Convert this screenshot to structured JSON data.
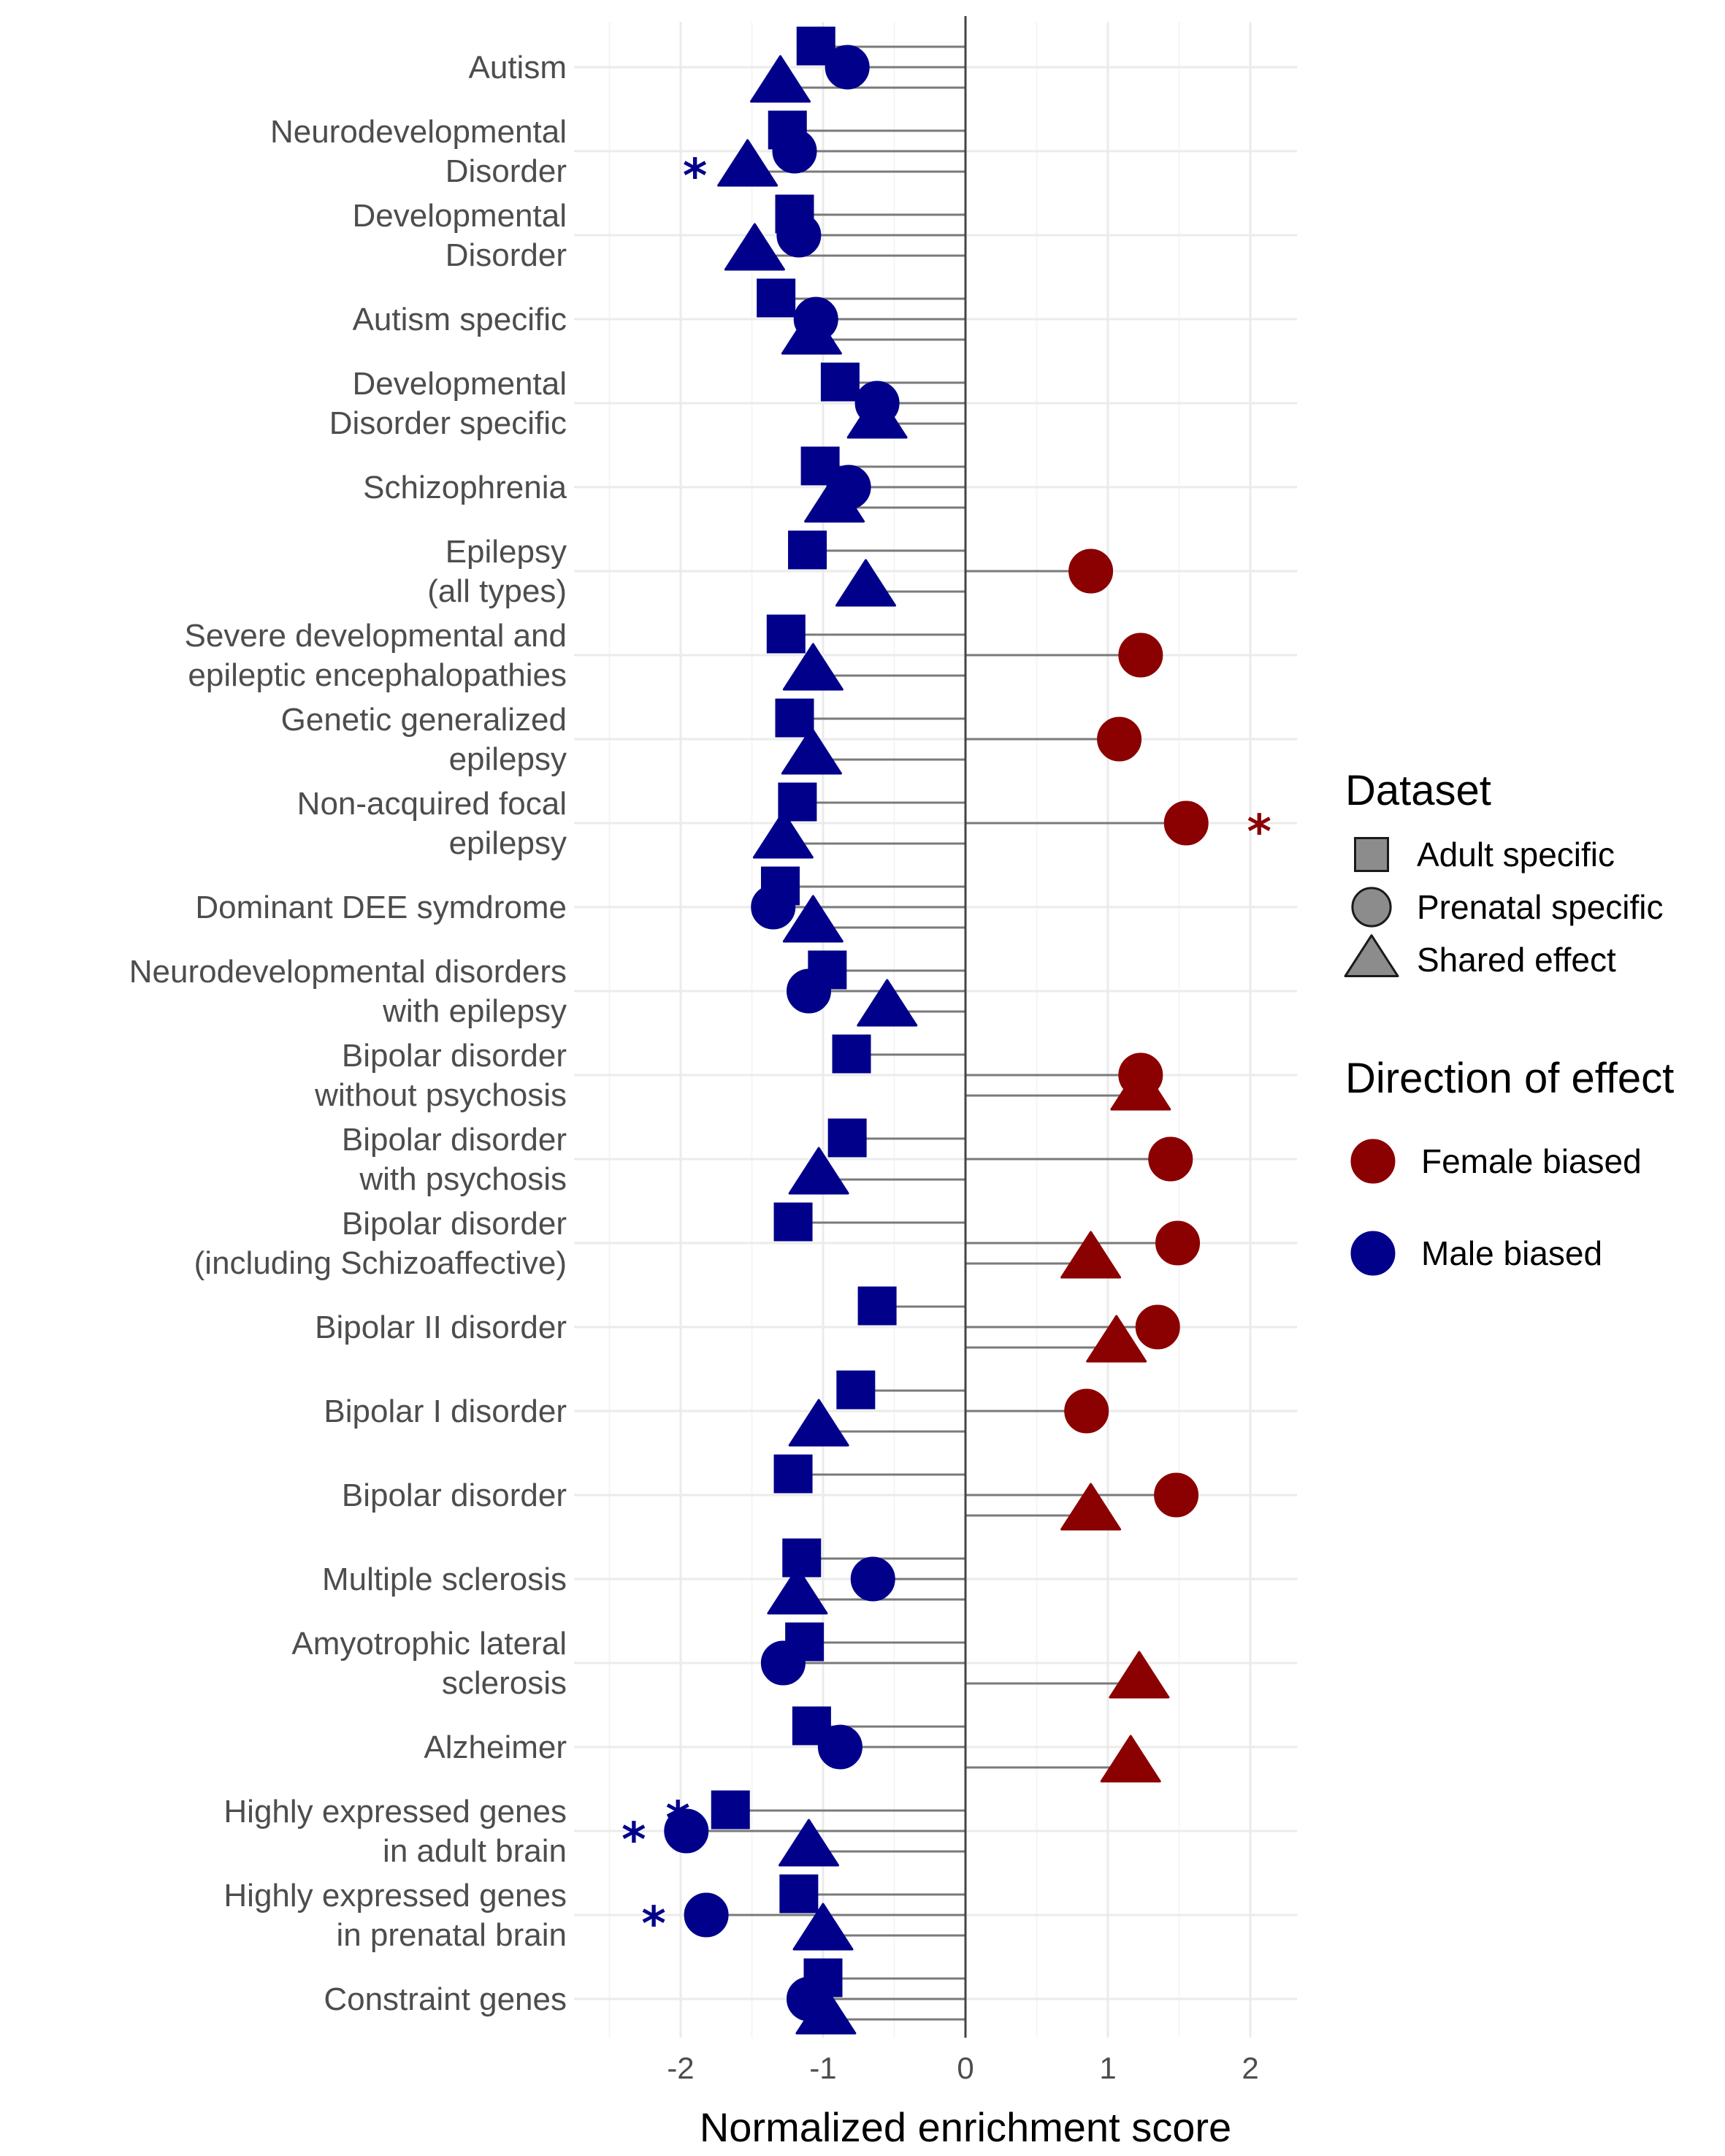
{
  "chart_data": {
    "type": "scatter",
    "xlabel": "Normalized enrichment score",
    "xlim": [
      -2.55,
      2.3
    ],
    "x_ticks": [
      -2,
      -1,
      0,
      1,
      2
    ],
    "x_tick_labels": [
      "-2",
      "-1",
      "0",
      "1",
      "2"
    ],
    "grid": true,
    "legend_position": "right",
    "colors": {
      "Female biased": "#8b0000",
      "Male biased": "#00008b"
    },
    "legend": {
      "dataset_title": "Dataset",
      "dataset_items": [
        {
          "label": "Adult specific",
          "shape": "square"
        },
        {
          "label": "Prenatal specific",
          "shape": "circle"
        },
        {
          "label": "Shared effect",
          "shape": "triangle"
        }
      ],
      "direction_title": "Direction of effect",
      "direction_items": [
        {
          "label": "Female biased",
          "color": "#8b0000"
        },
        {
          "label": "Male biased",
          "color": "#00008b"
        }
      ]
    },
    "categories": [
      {
        "label": [
          "Autism"
        ],
        "points": [
          {
            "dataset": "Adult specific",
            "value": -1.05,
            "direction": "Male biased",
            "sig": false
          },
          {
            "dataset": "Prenatal specific",
            "value": -0.83,
            "direction": "Male biased",
            "sig": false
          },
          {
            "dataset": "Shared effect",
            "value": -1.3,
            "direction": "Male biased",
            "sig": false
          }
        ]
      },
      {
        "label": [
          "Neurodevelopmental",
          "Disorder"
        ],
        "points": [
          {
            "dataset": "Adult specific",
            "value": -1.25,
            "direction": "Male biased",
            "sig": false
          },
          {
            "dataset": "Prenatal specific",
            "value": -1.2,
            "direction": "Male biased",
            "sig": false
          },
          {
            "dataset": "Shared effect",
            "value": -1.53,
            "direction": "Male biased",
            "sig": true
          }
        ]
      },
      {
        "label": [
          "Developmental",
          "Disorder"
        ],
        "points": [
          {
            "dataset": "Adult specific",
            "value": -1.2,
            "direction": "Male biased",
            "sig": false
          },
          {
            "dataset": "Prenatal specific",
            "value": -1.17,
            "direction": "Male biased",
            "sig": false
          },
          {
            "dataset": "Shared effect",
            "value": -1.48,
            "direction": "Male biased",
            "sig": false
          }
        ]
      },
      {
        "label": [
          "Autism specific"
        ],
        "points": [
          {
            "dataset": "Adult specific",
            "value": -1.33,
            "direction": "Male biased",
            "sig": false
          },
          {
            "dataset": "Prenatal specific",
            "value": -1.05,
            "direction": "Male biased",
            "sig": false
          },
          {
            "dataset": "Shared effect",
            "value": -1.08,
            "direction": "Male biased",
            "sig": false
          }
        ]
      },
      {
        "label": [
          "Developmental",
          "Disorder specific"
        ],
        "points": [
          {
            "dataset": "Adult specific",
            "value": -0.88,
            "direction": "Male biased",
            "sig": false
          },
          {
            "dataset": "Prenatal specific",
            "value": -0.62,
            "direction": "Male biased",
            "sig": false
          },
          {
            "dataset": "Shared effect",
            "value": -0.62,
            "direction": "Male biased",
            "sig": false
          }
        ]
      },
      {
        "label": [
          "Schizophrenia"
        ],
        "points": [
          {
            "dataset": "Adult specific",
            "value": -1.02,
            "direction": "Male biased",
            "sig": false
          },
          {
            "dataset": "Prenatal specific",
            "value": -0.82,
            "direction": "Male biased",
            "sig": false
          },
          {
            "dataset": "Shared effect",
            "value": -0.92,
            "direction": "Male biased",
            "sig": false
          }
        ]
      },
      {
        "label": [
          "Epilepsy",
          "(all types)"
        ],
        "points": [
          {
            "dataset": "Adult specific",
            "value": -1.11,
            "direction": "Male biased",
            "sig": false
          },
          {
            "dataset": "Prenatal specific",
            "value": 0.88,
            "direction": "Female biased",
            "sig": false
          },
          {
            "dataset": "Shared effect",
            "value": -0.7,
            "direction": "Male biased",
            "sig": false
          }
        ]
      },
      {
        "label": [
          "Severe developmental and",
          "epileptic encephalopathies"
        ],
        "points": [
          {
            "dataset": "Adult specific",
            "value": -1.26,
            "direction": "Male biased",
            "sig": false
          },
          {
            "dataset": "Prenatal specific",
            "value": 1.23,
            "direction": "Female biased",
            "sig": false
          },
          {
            "dataset": "Shared effect",
            "value": -1.07,
            "direction": "Male biased",
            "sig": false
          }
        ]
      },
      {
        "label": [
          "Genetic generalized",
          "epilepsy"
        ],
        "points": [
          {
            "dataset": "Adult specific",
            "value": -1.2,
            "direction": "Male biased",
            "sig": false
          },
          {
            "dataset": "Prenatal specific",
            "value": 1.08,
            "direction": "Female biased",
            "sig": false
          },
          {
            "dataset": "Shared effect",
            "value": -1.08,
            "direction": "Male biased",
            "sig": false
          }
        ]
      },
      {
        "label": [
          "Non-acquired focal",
          "epilepsy"
        ],
        "points": [
          {
            "dataset": "Adult specific",
            "value": -1.18,
            "direction": "Male biased",
            "sig": false
          },
          {
            "dataset": "Prenatal specific",
            "value": 1.55,
            "direction": "Female biased",
            "sig": true
          },
          {
            "dataset": "Shared effect",
            "value": -1.28,
            "direction": "Male biased",
            "sig": false
          }
        ]
      },
      {
        "label": [
          "Dominant DEE symdrome"
        ],
        "points": [
          {
            "dataset": "Adult specific",
            "value": -1.3,
            "direction": "Male biased",
            "sig": false
          },
          {
            "dataset": "Prenatal specific",
            "value": -1.35,
            "direction": "Male biased",
            "sig": false
          },
          {
            "dataset": "Shared effect",
            "value": -1.07,
            "direction": "Male biased",
            "sig": false
          }
        ]
      },
      {
        "label": [
          "Neurodevelopmental disorders",
          "with epilepsy"
        ],
        "points": [
          {
            "dataset": "Adult specific",
            "value": -0.97,
            "direction": "Male biased",
            "sig": false
          },
          {
            "dataset": "Prenatal specific",
            "value": -1.1,
            "direction": "Male biased",
            "sig": false
          },
          {
            "dataset": "Shared effect",
            "value": -0.55,
            "direction": "Male biased",
            "sig": false
          }
        ]
      },
      {
        "label": [
          "Bipolar disorder",
          "without psychosis"
        ],
        "points": [
          {
            "dataset": "Adult specific",
            "value": -0.8,
            "direction": "Male biased",
            "sig": false
          },
          {
            "dataset": "Prenatal specific",
            "value": 1.23,
            "direction": "Female biased",
            "sig": false
          },
          {
            "dataset": "Shared effect",
            "value": 1.23,
            "direction": "Female biased",
            "sig": false
          }
        ]
      },
      {
        "label": [
          "Bipolar disorder",
          "with psychosis"
        ],
        "points": [
          {
            "dataset": "Adult specific",
            "value": -0.83,
            "direction": "Male biased",
            "sig": false
          },
          {
            "dataset": "Prenatal specific",
            "value": 1.44,
            "direction": "Female biased",
            "sig": false
          },
          {
            "dataset": "Shared effect",
            "value": -1.03,
            "direction": "Male biased",
            "sig": false
          }
        ]
      },
      {
        "label": [
          "Bipolar disorder",
          "(including Schizoaffective)"
        ],
        "points": [
          {
            "dataset": "Adult specific",
            "value": -1.21,
            "direction": "Male biased",
            "sig": false
          },
          {
            "dataset": "Prenatal specific",
            "value": 1.49,
            "direction": "Female biased",
            "sig": false
          },
          {
            "dataset": "Shared effect",
            "value": 0.88,
            "direction": "Female biased",
            "sig": false
          }
        ]
      },
      {
        "label": [
          "Bipolar II disorder"
        ],
        "points": [
          {
            "dataset": "Adult specific",
            "value": -0.62,
            "direction": "Male biased",
            "sig": false
          },
          {
            "dataset": "Prenatal specific",
            "value": 1.35,
            "direction": "Female biased",
            "sig": false
          },
          {
            "dataset": "Shared effect",
            "value": 1.06,
            "direction": "Female biased",
            "sig": false
          }
        ]
      },
      {
        "label": [
          "Bipolar I disorder"
        ],
        "points": [
          {
            "dataset": "Adult specific",
            "value": -0.77,
            "direction": "Male biased",
            "sig": false
          },
          {
            "dataset": "Prenatal specific",
            "value": 0.85,
            "direction": "Female biased",
            "sig": false
          },
          {
            "dataset": "Shared effect",
            "value": -1.03,
            "direction": "Male biased",
            "sig": false
          }
        ]
      },
      {
        "label": [
          "Bipolar disorder"
        ],
        "points": [
          {
            "dataset": "Adult specific",
            "value": -1.21,
            "direction": "Male biased",
            "sig": false
          },
          {
            "dataset": "Prenatal specific",
            "value": 1.48,
            "direction": "Female biased",
            "sig": false
          },
          {
            "dataset": "Shared effect",
            "value": 0.88,
            "direction": "Female biased",
            "sig": false
          }
        ]
      },
      {
        "label": [
          "Multiple sclerosis"
        ],
        "points": [
          {
            "dataset": "Adult specific",
            "value": -1.15,
            "direction": "Male biased",
            "sig": false
          },
          {
            "dataset": "Prenatal specific",
            "value": -0.65,
            "direction": "Male biased",
            "sig": false
          },
          {
            "dataset": "Shared effect",
            "value": -1.18,
            "direction": "Male biased",
            "sig": false
          }
        ]
      },
      {
        "label": [
          "Amyotrophic lateral",
          "sclerosis"
        ],
        "points": [
          {
            "dataset": "Adult specific",
            "value": -1.13,
            "direction": "Male biased",
            "sig": false
          },
          {
            "dataset": "Prenatal specific",
            "value": -1.28,
            "direction": "Male biased",
            "sig": false
          },
          {
            "dataset": "Shared effect",
            "value": 1.22,
            "direction": "Female biased",
            "sig": false
          }
        ]
      },
      {
        "label": [
          "Alzheimer"
        ],
        "points": [
          {
            "dataset": "Adult specific",
            "value": -1.08,
            "direction": "Male biased",
            "sig": false
          },
          {
            "dataset": "Prenatal specific",
            "value": -0.88,
            "direction": "Male biased",
            "sig": false
          },
          {
            "dataset": "Shared effect",
            "value": 1.16,
            "direction": "Female biased",
            "sig": false
          }
        ]
      },
      {
        "label": [
          "Highly expressed genes",
          "in adult brain"
        ],
        "points": [
          {
            "dataset": "Adult specific",
            "value": -1.65,
            "direction": "Male biased",
            "sig": true
          },
          {
            "dataset": "Prenatal specific",
            "value": -1.96,
            "direction": "Male biased",
            "sig": true
          },
          {
            "dataset": "Shared effect",
            "value": -1.1,
            "direction": "Male biased",
            "sig": false
          }
        ]
      },
      {
        "label": [
          "Highly expressed genes",
          "in prenatal brain"
        ],
        "points": [
          {
            "dataset": "Adult specific",
            "value": -1.17,
            "direction": "Male biased",
            "sig": false
          },
          {
            "dataset": "Prenatal specific",
            "value": -1.82,
            "direction": "Male biased",
            "sig": true
          },
          {
            "dataset": "Shared effect",
            "value": -1.0,
            "direction": "Male biased",
            "sig": false
          }
        ]
      },
      {
        "label": [
          "Constraint genes"
        ],
        "points": [
          {
            "dataset": "Adult specific",
            "value": -1.0,
            "direction": "Male biased",
            "sig": false
          },
          {
            "dataset": "Prenatal specific",
            "value": -1.1,
            "direction": "Male biased",
            "sig": false
          },
          {
            "dataset": "Shared effect",
            "value": -0.98,
            "direction": "Male biased",
            "sig": false
          }
        ]
      }
    ],
    "significance_marker": "*"
  }
}
